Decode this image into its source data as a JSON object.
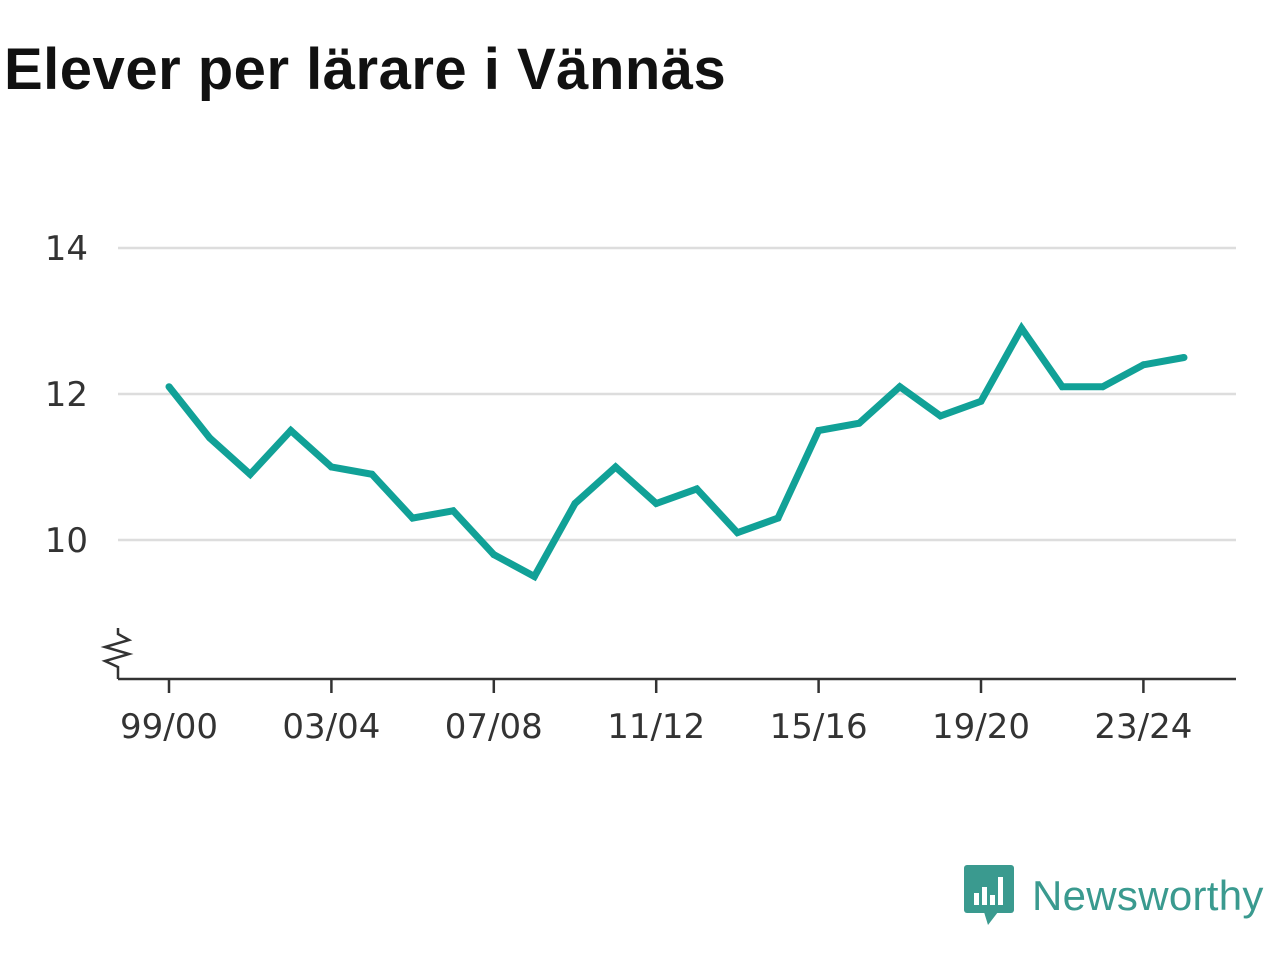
{
  "chart_data": {
    "type": "line",
    "title": "Elever per lärare i Vännäs",
    "xlabel": "",
    "ylabel": "",
    "x": [
      "99/00",
      "00/01",
      "01/02",
      "02/03",
      "03/04",
      "04/05",
      "05/06",
      "06/07",
      "07/08",
      "08/09",
      "09/10",
      "10/11",
      "11/12",
      "12/13",
      "13/14",
      "14/15",
      "15/16",
      "16/17",
      "17/18",
      "18/19",
      "19/20",
      "20/21",
      "21/22",
      "22/23",
      "23/24",
      "24/25"
    ],
    "x_tick_labels": [
      "99/00",
      "03/04",
      "07/08",
      "11/12",
      "15/16",
      "19/20",
      "23/24"
    ],
    "series": [
      {
        "values": [
          12.1,
          11.4,
          10.9,
          11.5,
          11.0,
          10.9,
          10.3,
          10.4,
          9.8,
          9.5,
          10.5,
          11.0,
          10.5,
          10.7,
          10.1,
          10.3,
          11.5,
          11.6,
          12.1,
          11.7,
          11.9,
          12.9,
          12.1,
          12.1,
          12.4,
          12.5
        ]
      }
    ],
    "y_ticks": [
      10,
      12,
      14
    ],
    "ylim": [
      8.1,
      14
    ],
    "grid": true,
    "axis_break": true,
    "colors": {
      "line": "#11a197",
      "grid": "#dddddd",
      "axis": "#333333"
    }
  },
  "brand": {
    "name": "Newsworthy",
    "color": "#3a9a8f"
  }
}
